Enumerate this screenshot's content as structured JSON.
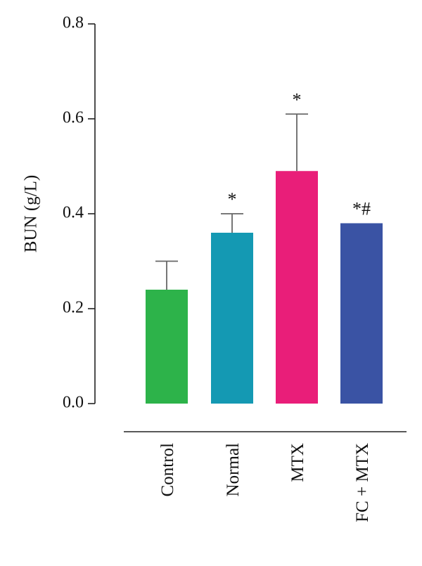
{
  "chart_data": {
    "type": "bar",
    "title": "",
    "xlabel": "",
    "ylabel": "BUN (g/L)",
    "ylim": [
      0,
      0.8
    ],
    "yticks": [
      0.0,
      0.2,
      0.4,
      0.6,
      0.8
    ],
    "ytick_labels": [
      "0.0",
      "0.2",
      "0.4",
      "0.6",
      "0.8"
    ],
    "categories": [
      "Control",
      "Normal",
      "MTX",
      "FC + MTX"
    ],
    "values": [
      0.24,
      0.36,
      0.49,
      0.38
    ],
    "error_upper": [
      0.3,
      0.4,
      0.61,
      null
    ],
    "annotations": [
      "",
      "*",
      "*",
      "*#"
    ],
    "colors": [
      "#2db34a",
      "#1499b3",
      "#e91e79",
      "#3a53a4"
    ],
    "grid": false,
    "legend": "none"
  }
}
